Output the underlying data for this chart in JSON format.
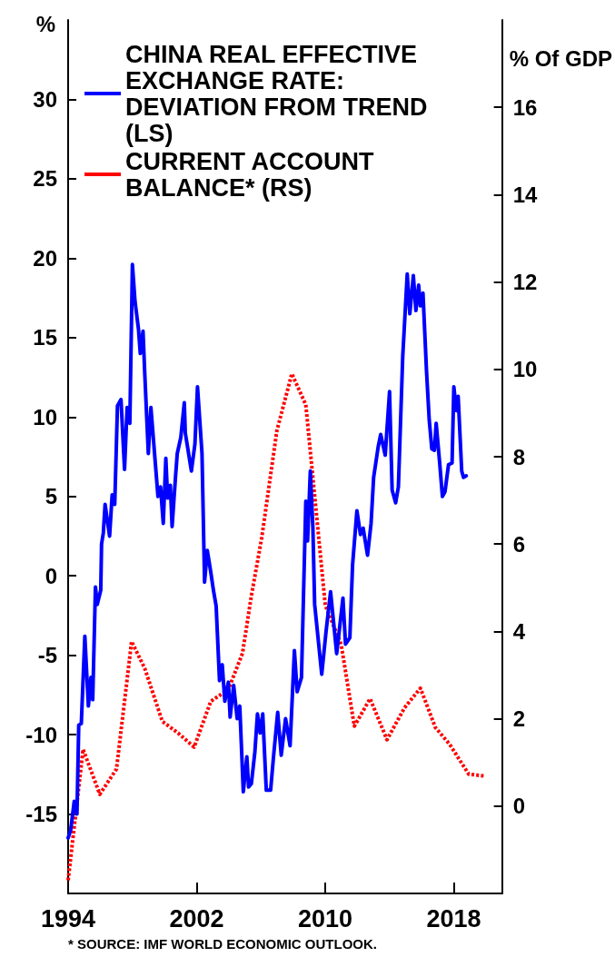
{
  "chart_data": {
    "type": "line",
    "ylabel": "%",
    "y2label": "% Of GDP",
    "annotations": [
      "* SOURCE: IMF WORLD ECONOMIC OUTLOOK."
    ],
    "xlim": [
      1994,
      2021
    ],
    "xticks": [
      1994,
      2002,
      2010,
      2018
    ],
    "ylim": [
      -20,
      35
    ],
    "yticks": [
      -15,
      -10,
      -5,
      0,
      5,
      10,
      15,
      20,
      25,
      30
    ],
    "y2lim": [
      -2,
      18
    ],
    "y2ticks": [
      0,
      2,
      4,
      6,
      8,
      10,
      12,
      14,
      16
    ],
    "grid": false,
    "legend": "top left",
    "marker": "none",
    "series": [
      {
        "name": "CHINA REAL EFFECTIVE EXCHANGE RATE: DEVIATION FROM TREND (LS)",
        "color": "#0000ff",
        "line_style": "solid",
        "x": [
          1994.0,
          1994.16,
          1994.38,
          1994.55,
          1994.66,
          1994.82,
          1995.04,
          1995.26,
          1995.42,
          1995.53,
          1995.7,
          1995.81,
          1996.03,
          1996.08,
          1996.19,
          1996.3,
          1996.58,
          1996.74,
          1996.9,
          1997.07,
          1997.29,
          1997.51,
          1997.67,
          1997.84,
          1998.0,
          1998.16,
          1998.38,
          1998.49,
          1998.66,
          1998.77,
          1998.99,
          1999.15,
          1999.59,
          1999.75,
          1999.92,
          2000.08,
          2000.19,
          2000.36,
          2000.47,
          2000.68,
          2000.79,
          2001.01,
          2001.23,
          2001.29,
          2001.67,
          2001.89,
          2002.05,
          2002.33,
          2002.49,
          2002.66,
          2002.88,
          2003.04,
          2003.21,
          2003.42,
          2003.59,
          2003.75,
          2003.97,
          2004.08,
          2004.3,
          2004.52,
          2004.68,
          2004.9,
          2005.12,
          2005.23,
          2005.4,
          2005.62,
          2005.78,
          2005.95,
          2006.11,
          2006.33,
          2006.6,
          2006.77,
          2007.04,
          2007.26,
          2007.53,
          2007.81,
          2008.08,
          2008.25,
          2008.52,
          2008.79,
          2008.9,
          2009.07,
          2009.23,
          2009.34,
          2009.78,
          2010.05,
          2010.33,
          2010.71,
          2011.1,
          2011.26,
          2011.53,
          2011.7,
          2011.97,
          2012.19,
          2012.36,
          2012.63,
          2012.85,
          2013.01,
          2013.29,
          2013.45,
          2013.73,
          2014.0,
          2014.16,
          2014.38,
          2014.55,
          2014.82,
          2015.1,
          2015.26,
          2015.48,
          2015.64,
          2015.81,
          2015.92,
          2016.08,
          2016.3,
          2016.47,
          2016.63,
          2016.79,
          2016.9,
          2017.12,
          2017.29,
          2017.45,
          2017.67,
          2017.89,
          2018.0,
          2018.16,
          2018.27,
          2018.49,
          2018.6,
          2018.77
        ],
        "values": [
          -16.5,
          -16.0,
          -14.2,
          -15.0,
          -9.4,
          -9.3,
          -3.8,
          -8.2,
          -6.4,
          -7.8,
          -0.7,
          -1.8,
          -0.9,
          2.0,
          2.7,
          4.5,
          2.5,
          5.1,
          4.5,
          10.7,
          11.1,
          6.7,
          10.6,
          9.6,
          19.6,
          17.3,
          15.5,
          14.0,
          15.4,
          12.7,
          7.7,
          10.6,
          5.0,
          5.6,
          3.3,
          7.4,
          4.9,
          5.7,
          3.1,
          6.2,
          7.7,
          8.7,
          10.9,
          9.0,
          6.6,
          8.3,
          11.9,
          7.7,
          -0.4,
          1.6,
          0.2,
          -0.9,
          -1.9,
          -6.6,
          -5.6,
          -7.9,
          -6.7,
          -8.9,
          -6.9,
          -9.0,
          -8.2,
          -13.6,
          -11.4,
          -13.3,
          -13.1,
          -11.1,
          -8.7,
          -9.9,
          -8.7,
          -13.5,
          -13.5,
          -11.5,
          -8.6,
          -11.3,
          -9.0,
          -10.7,
          -4.7,
          -7.3,
          -6.4,
          4.7,
          2.2,
          6.6,
          3.0,
          -1.8,
          -6.2,
          -3.5,
          -1.0,
          -4.9,
          -1.4,
          -4.3,
          -3.9,
          0.7,
          4.1,
          2.6,
          3.0,
          1.3,
          3.3,
          6.2,
          8.1,
          8.9,
          7.6,
          11.6,
          5.4,
          4.6,
          5.6,
          13.8,
          19.0,
          16.5,
          18.9,
          16.7,
          18.3,
          17.0,
          17.8,
          12.9,
          9.8,
          8.0,
          7.9,
          9.6,
          7.1,
          5.0,
          5.3,
          7.0,
          7.1,
          11.9,
          10.4,
          11.3,
          6.6,
          6.2,
          6.3
        ]
      },
      {
        "name": "CURRENT ACCOUNT BALANCE* (RS)",
        "color": "#ff0000",
        "line_style": "dashed",
        "axis": "y2",
        "x": [
          1994.0,
          1994.93,
          1995.97,
          1997.01,
          1997.95,
          1998.77,
          1999.86,
          2000.85,
          2001.84,
          2002.88,
          2003.97,
          2004.85,
          2005.4,
          2006.05,
          2006.99,
          2007.92,
          2008.79,
          2010.0,
          2010.99,
          2011.81,
          2012.79,
          2013.84,
          2014.93,
          2015.92,
          2016.85,
          2017.73,
          2018.93,
          2019.92
        ],
        "values": [
          -1.7,
          1.3,
          0.27,
          0.85,
          3.77,
          3.15,
          1.94,
          1.67,
          1.35,
          2.4,
          2.67,
          3.5,
          4.81,
          6.15,
          8.6,
          9.9,
          9.19,
          4.6,
          3.7,
          1.83,
          2.46,
          1.52,
          2.25,
          2.7,
          1.8,
          1.42,
          0.73,
          0.69
        ]
      }
    ]
  }
}
